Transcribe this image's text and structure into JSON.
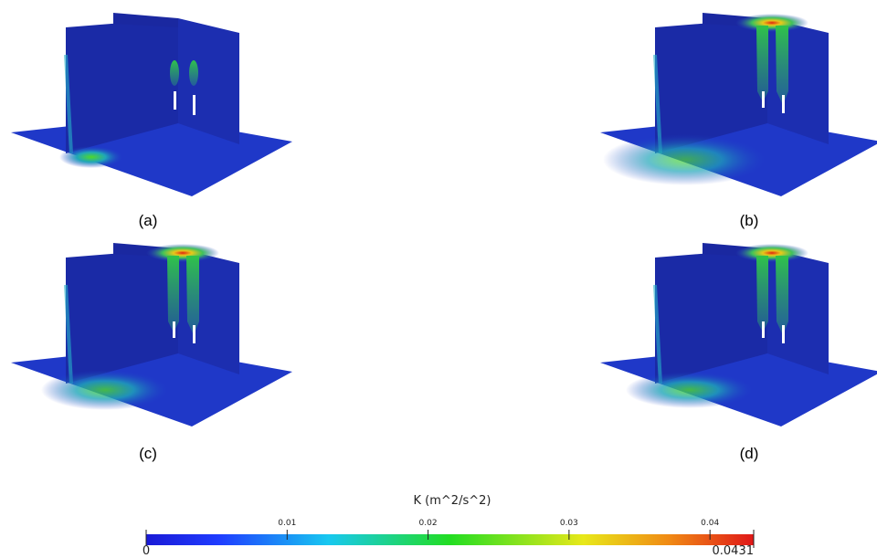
{
  "panels": [
    {
      "label": "(a)"
    },
    {
      "label": "(b)"
    },
    {
      "label": "(c)"
    },
    {
      "label": "(d)"
    }
  ],
  "colorbar": {
    "title": "K (m^2/s^2)",
    "lim": [
      0,
      0.0431
    ],
    "ticks": [
      0.01,
      0.02,
      0.03,
      0.04
    ]
  }
}
